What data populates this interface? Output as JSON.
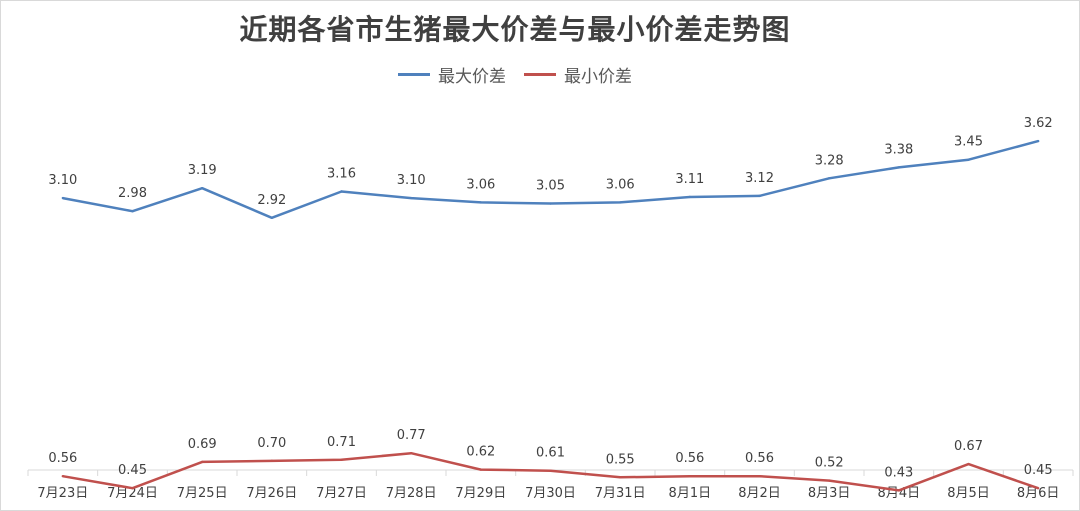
{
  "chart_data": {
    "type": "line",
    "title": "近期各省市生猪最大价差与最小价差走势图",
    "categories": [
      "7月23日",
      "7月24日",
      "7月25日",
      "7月26日",
      "7月27日",
      "7月28日",
      "7月29日",
      "7月30日",
      "7月31日",
      "8月1日",
      "8月2日",
      "8月3日",
      "8月4日",
      "8月5日",
      "8月6日"
    ],
    "series": [
      {
        "name": "最大价差",
        "color": "#4f81bd",
        "values": [
          3.1,
          2.98,
          3.19,
          2.92,
          3.16,
          3.1,
          3.06,
          3.05,
          3.06,
          3.11,
          3.12,
          3.28,
          3.38,
          3.45,
          3.62
        ]
      },
      {
        "name": "最小价差",
        "color": "#c0504d",
        "values": [
          0.56,
          0.45,
          0.69,
          0.7,
          0.71,
          0.77,
          0.62,
          0.61,
          0.55,
          0.56,
          0.56,
          0.52,
          0.43,
          0.67,
          0.45
        ]
      }
    ],
    "legend_position": "top",
    "grid": false
  }
}
